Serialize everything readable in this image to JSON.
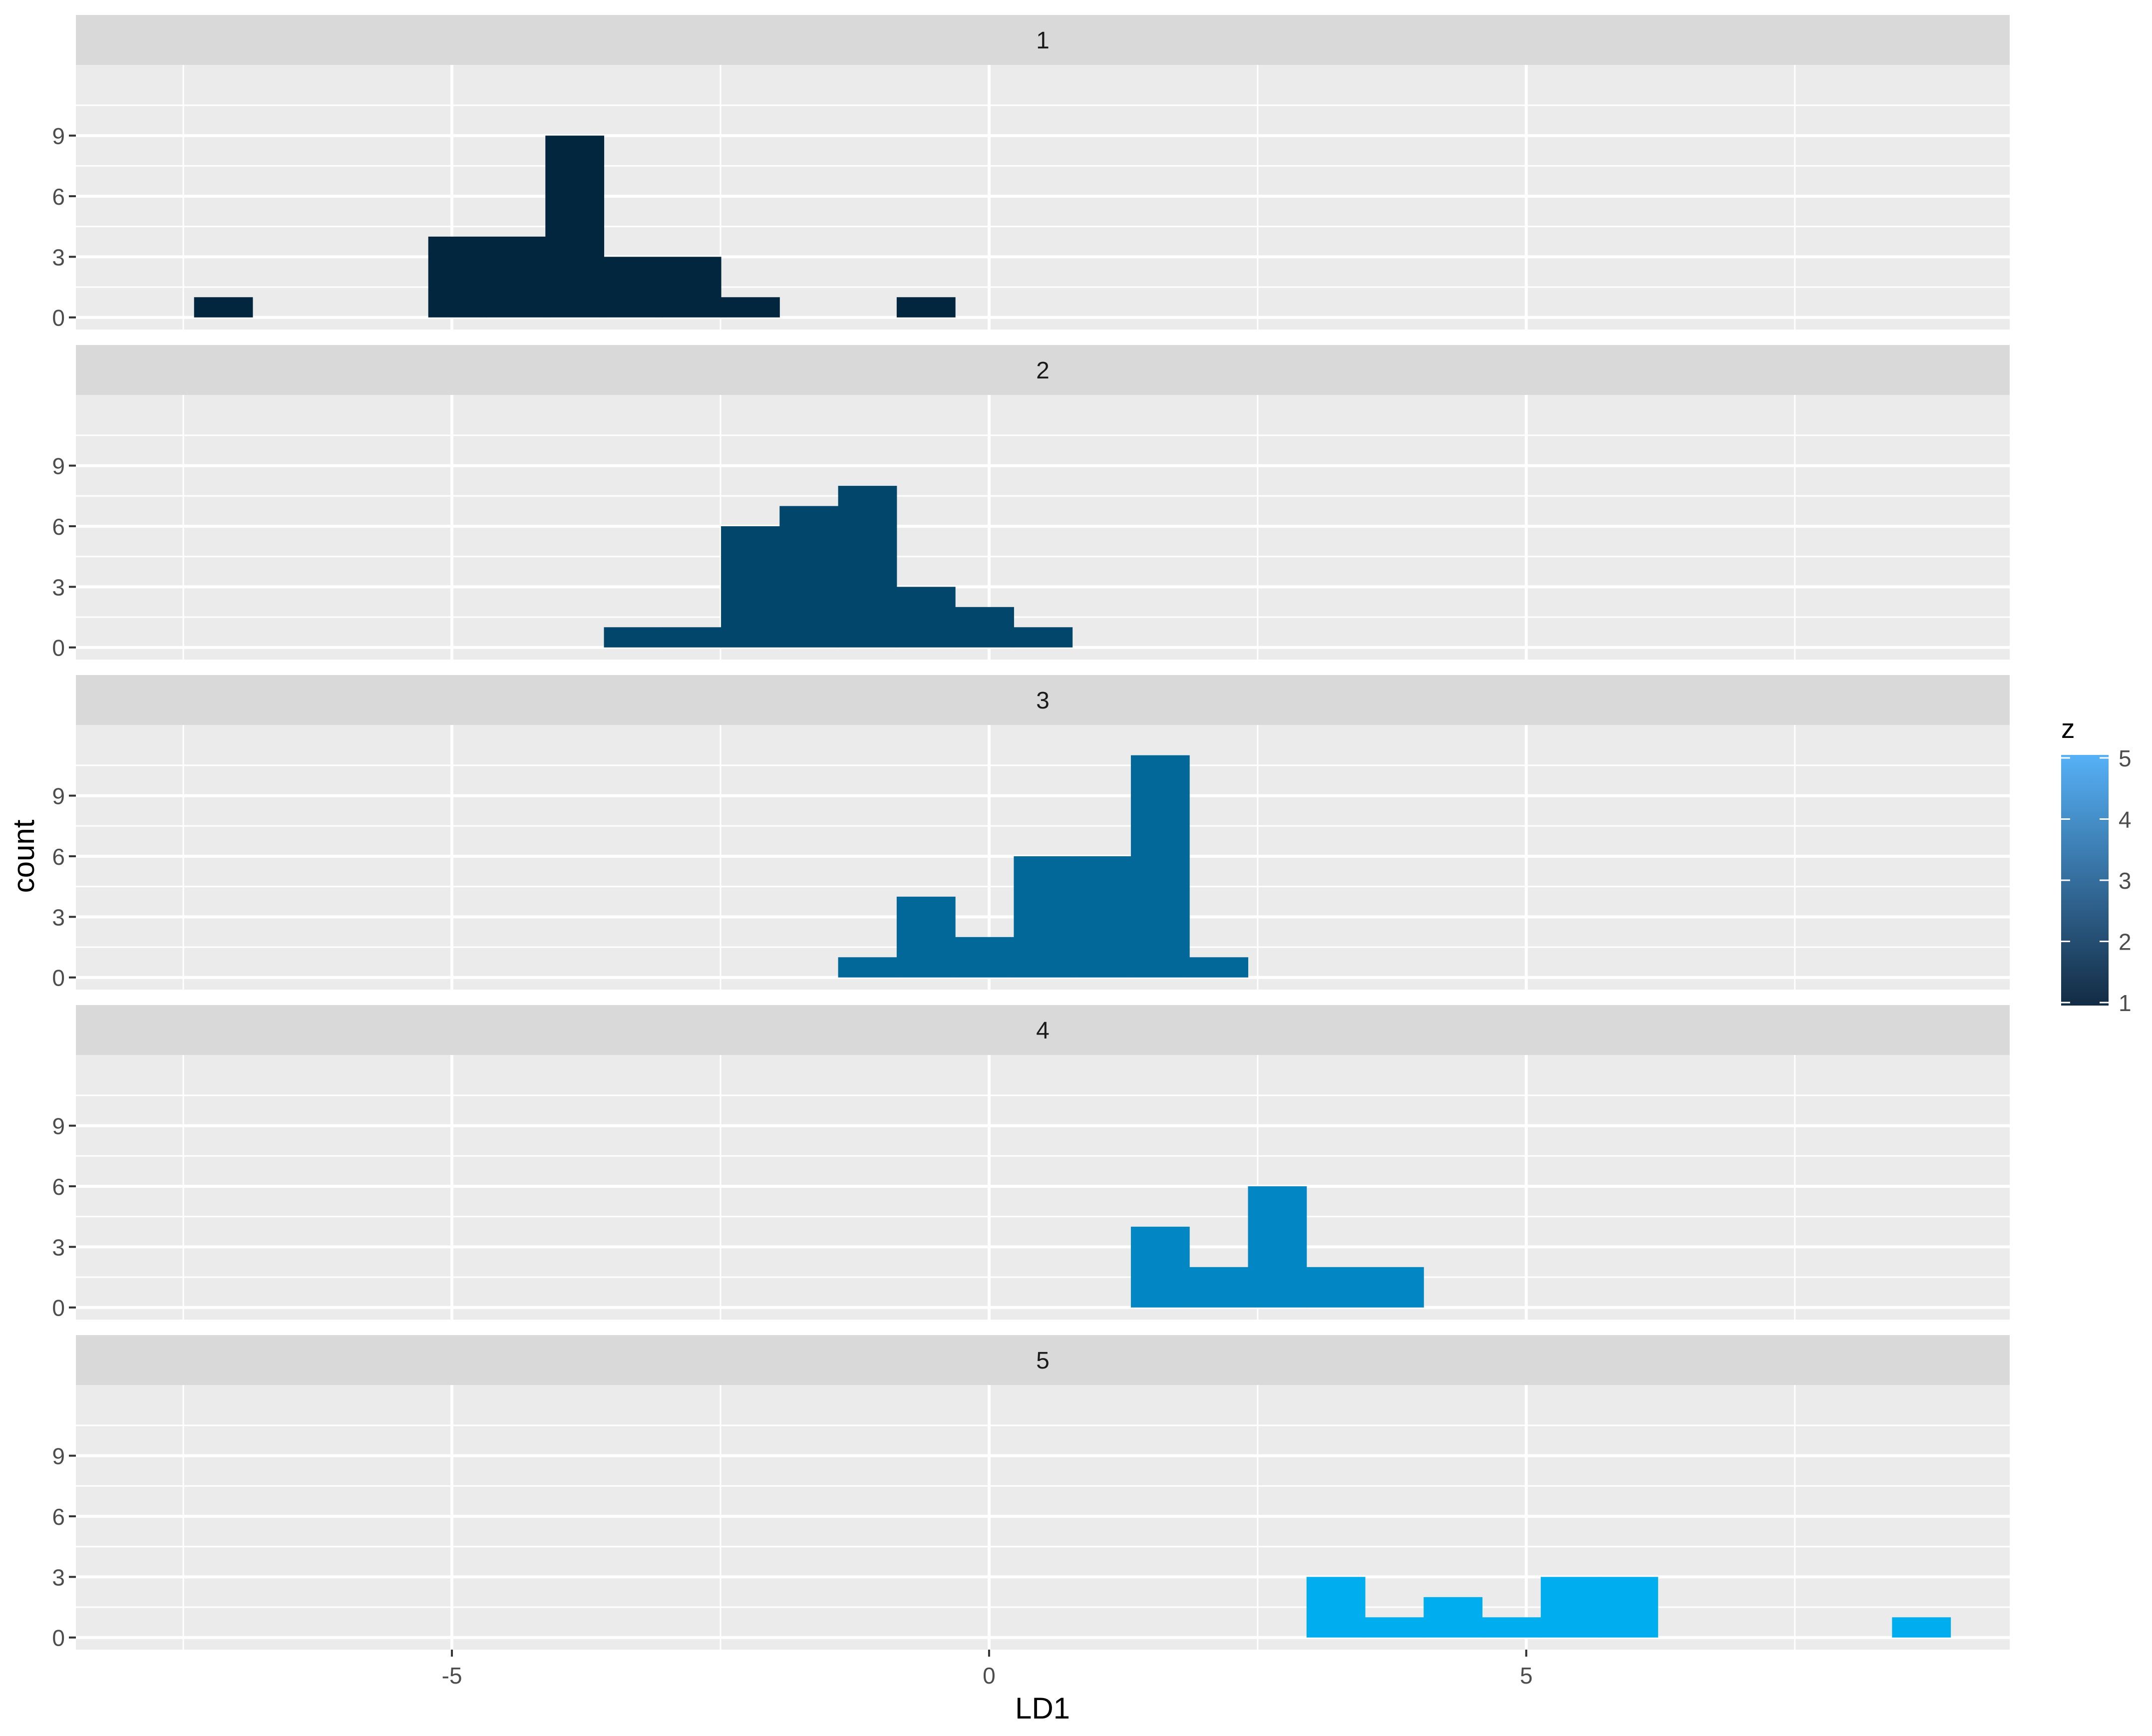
{
  "chart_data": {
    "type": "bar",
    "subtype": "histogram-facets",
    "xlabel": "LD1",
    "ylabel": "count",
    "xlim": [
      -8.5,
      9.5
    ],
    "ylim": [
      -0.6,
      12.5
    ],
    "x_ticks": [
      -5,
      0,
      5
    ],
    "x_tick_labels": [
      "-5",
      "0",
      "5"
    ],
    "y_ticks": [
      0,
      3,
      6,
      9
    ],
    "y_tick_labels": [
      "0",
      "3",
      "6",
      "9"
    ],
    "grid": true,
    "bin_width": 0.545,
    "legend": {
      "title": "z",
      "position": "right",
      "type": "colorbar",
      "range": [
        1,
        5
      ],
      "labels": [
        "1",
        "2",
        "3",
        "4",
        "5"
      ],
      "low_color": "#132B43",
      "high_color": "#56B1F7"
    },
    "panels": [
      {
        "label": "1",
        "color": "#03263f",
        "bins": [
          {
            "x0": -7.4,
            "x1": -6.855,
            "count": 1
          },
          {
            "x0": -5.22,
            "x1": -4.675,
            "count": 4
          },
          {
            "x0": -4.675,
            "x1": -4.13,
            "count": 4
          },
          {
            "x0": -4.13,
            "x1": -3.585,
            "count": 9
          },
          {
            "x0": -3.585,
            "x1": -3.04,
            "count": 3
          },
          {
            "x0": -3.04,
            "x1": -2.495,
            "count": 3
          },
          {
            "x0": -2.495,
            "x1": -1.95,
            "count": 1
          },
          {
            "x0": -0.86,
            "x1": -0.315,
            "count": 1
          }
        ]
      },
      {
        "label": "2",
        "color": "#03466c",
        "bins": [
          {
            "x0": -3.585,
            "x1": -3.04,
            "count": 1
          },
          {
            "x0": -3.04,
            "x1": -2.495,
            "count": 1
          },
          {
            "x0": -2.495,
            "x1": -1.95,
            "count": 6
          },
          {
            "x0": -1.95,
            "x1": -1.405,
            "count": 7
          },
          {
            "x0": -1.405,
            "x1": -0.86,
            "count": 8
          },
          {
            "x0": -0.86,
            "x1": -0.315,
            "count": 3
          },
          {
            "x0": -0.315,
            "x1": 0.23,
            "count": 2
          },
          {
            "x0": 0.23,
            "x1": 0.775,
            "count": 1
          }
        ]
      },
      {
        "label": "3",
        "color": "#02689a",
        "bins": [
          {
            "x0": -1.405,
            "x1": -0.86,
            "count": 1
          },
          {
            "x0": -0.86,
            "x1": -0.315,
            "count": 4
          },
          {
            "x0": -0.315,
            "x1": 0.23,
            "count": 2
          },
          {
            "x0": 0.23,
            "x1": 0.775,
            "count": 6
          },
          {
            "x0": 0.775,
            "x1": 1.32,
            "count": 6
          },
          {
            "x0": 1.32,
            "x1": 1.865,
            "count": 11
          },
          {
            "x0": 1.865,
            "x1": 2.41,
            "count": 1
          }
        ]
      },
      {
        "label": "4",
        "color": "#0287c4",
        "bins": [
          {
            "x0": 1.32,
            "x1": 1.865,
            "count": 4
          },
          {
            "x0": 1.865,
            "x1": 2.41,
            "count": 2
          },
          {
            "x0": 2.41,
            "x1": 2.955,
            "count": 6
          },
          {
            "x0": 2.955,
            "x1": 3.5,
            "count": 2
          },
          {
            "x0": 3.5,
            "x1": 4.045,
            "count": 2
          }
        ]
      },
      {
        "label": "5",
        "color": "#00aeef",
        "bins": [
          {
            "x0": 2.955,
            "x1": 3.5,
            "count": 3
          },
          {
            "x0": 3.5,
            "x1": 4.045,
            "count": 1
          },
          {
            "x0": 4.045,
            "x1": 4.59,
            "count": 2
          },
          {
            "x0": 4.59,
            "x1": 5.135,
            "count": 1
          },
          {
            "x0": 5.135,
            "x1": 5.68,
            "count": 3
          },
          {
            "x0": 5.68,
            "x1": 6.225,
            "count": 3
          },
          {
            "x0": 8.405,
            "x1": 8.95,
            "count": 1
          }
        ]
      }
    ]
  }
}
